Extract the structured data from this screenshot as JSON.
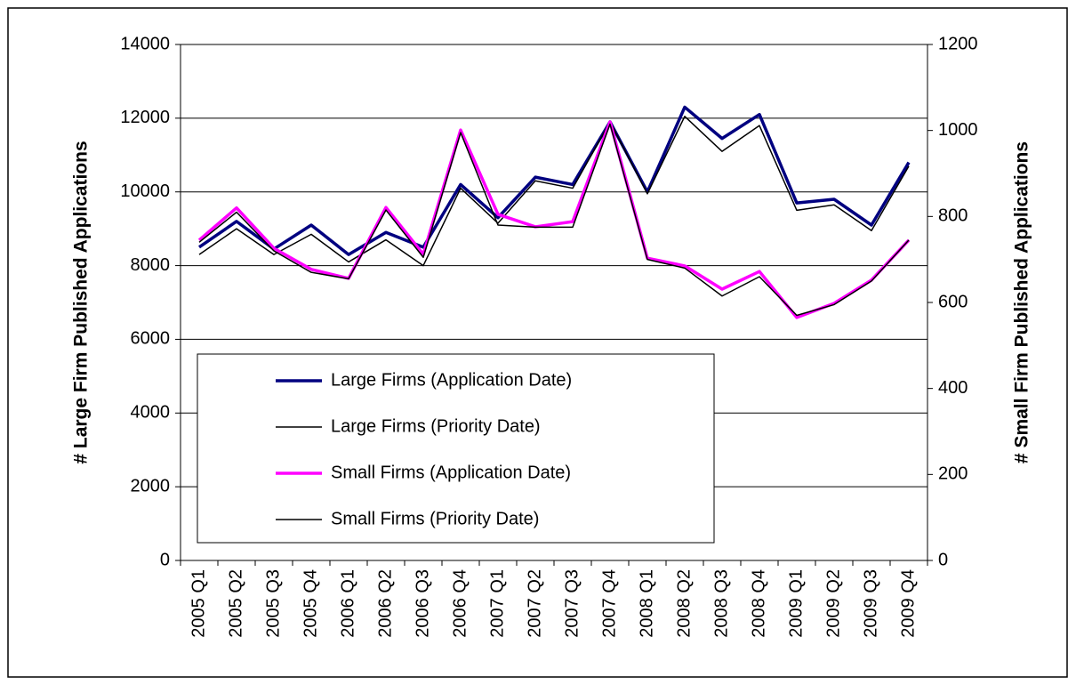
{
  "chart_data": {
    "type": "line",
    "y_label": "# Large Firm Published Applications",
    "y2_label": "# Small Firm Published Applications",
    "categories": [
      "2005 Q1",
      "2005 Q2",
      "2005 Q3",
      "2005 Q4",
      "2006 Q1",
      "2006 Q2",
      "2006 Q3",
      "2006 Q4",
      "2007 Q1",
      "2007 Q2",
      "2007 Q3",
      "2007 Q4",
      "2008 Q1",
      "2008 Q2",
      "2008 Q3",
      "2008 Q4",
      "2009 Q1",
      "2009 Q2",
      "2009 Q3",
      "2009 Q4"
    ],
    "series": [
      {
        "name": "Large Firms (Application Date)",
        "color": "#000080",
        "axis": "y",
        "values": [
          8500,
          9200,
          8450,
          9100,
          8300,
          8900,
          8500,
          10200,
          9300,
          10400,
          10200,
          11900,
          10000,
          12300,
          11450,
          12100,
          9700,
          9800,
          9100,
          10800
        ]
      },
      {
        "name": "Large Firms (Priority Date)",
        "color": "#000000",
        "axis": "y",
        "values": [
          8300,
          9000,
          8300,
          8850,
          8100,
          8700,
          8000,
          10100,
          9150,
          10300,
          10100,
          11900,
          9950,
          12050,
          11100,
          11800,
          9500,
          9650,
          8950,
          10700
        ]
      },
      {
        "name": "Small Firms (Application Date)",
        "color": "#ff00ff",
        "axis": "y2",
        "values": [
          745,
          820,
          726,
          677,
          656,
          821,
          712,
          1001,
          805,
          776,
          788,
          1020,
          703,
          685,
          631,
          672,
          565,
          598,
          652,
          745
        ]
      },
      {
        "name": "Small Firms (Priority Date)",
        "color": "#000000",
        "axis": "y2",
        "values": [
          740,
          810,
          720,
          670,
          655,
          815,
          705,
          995,
          780,
          775,
          775,
          1015,
          700,
          680,
          615,
          660,
          570,
          595,
          650,
          745
        ]
      }
    ],
    "ylim": [
      0,
      14000
    ],
    "yticks": [
      0,
      2000,
      4000,
      6000,
      8000,
      10000,
      12000,
      14000
    ],
    "y2lim": [
      0,
      1200
    ],
    "y2ticks": [
      0,
      200,
      400,
      600,
      800,
      1000,
      1200
    ],
    "grid": true,
    "legend": "lower left"
  }
}
